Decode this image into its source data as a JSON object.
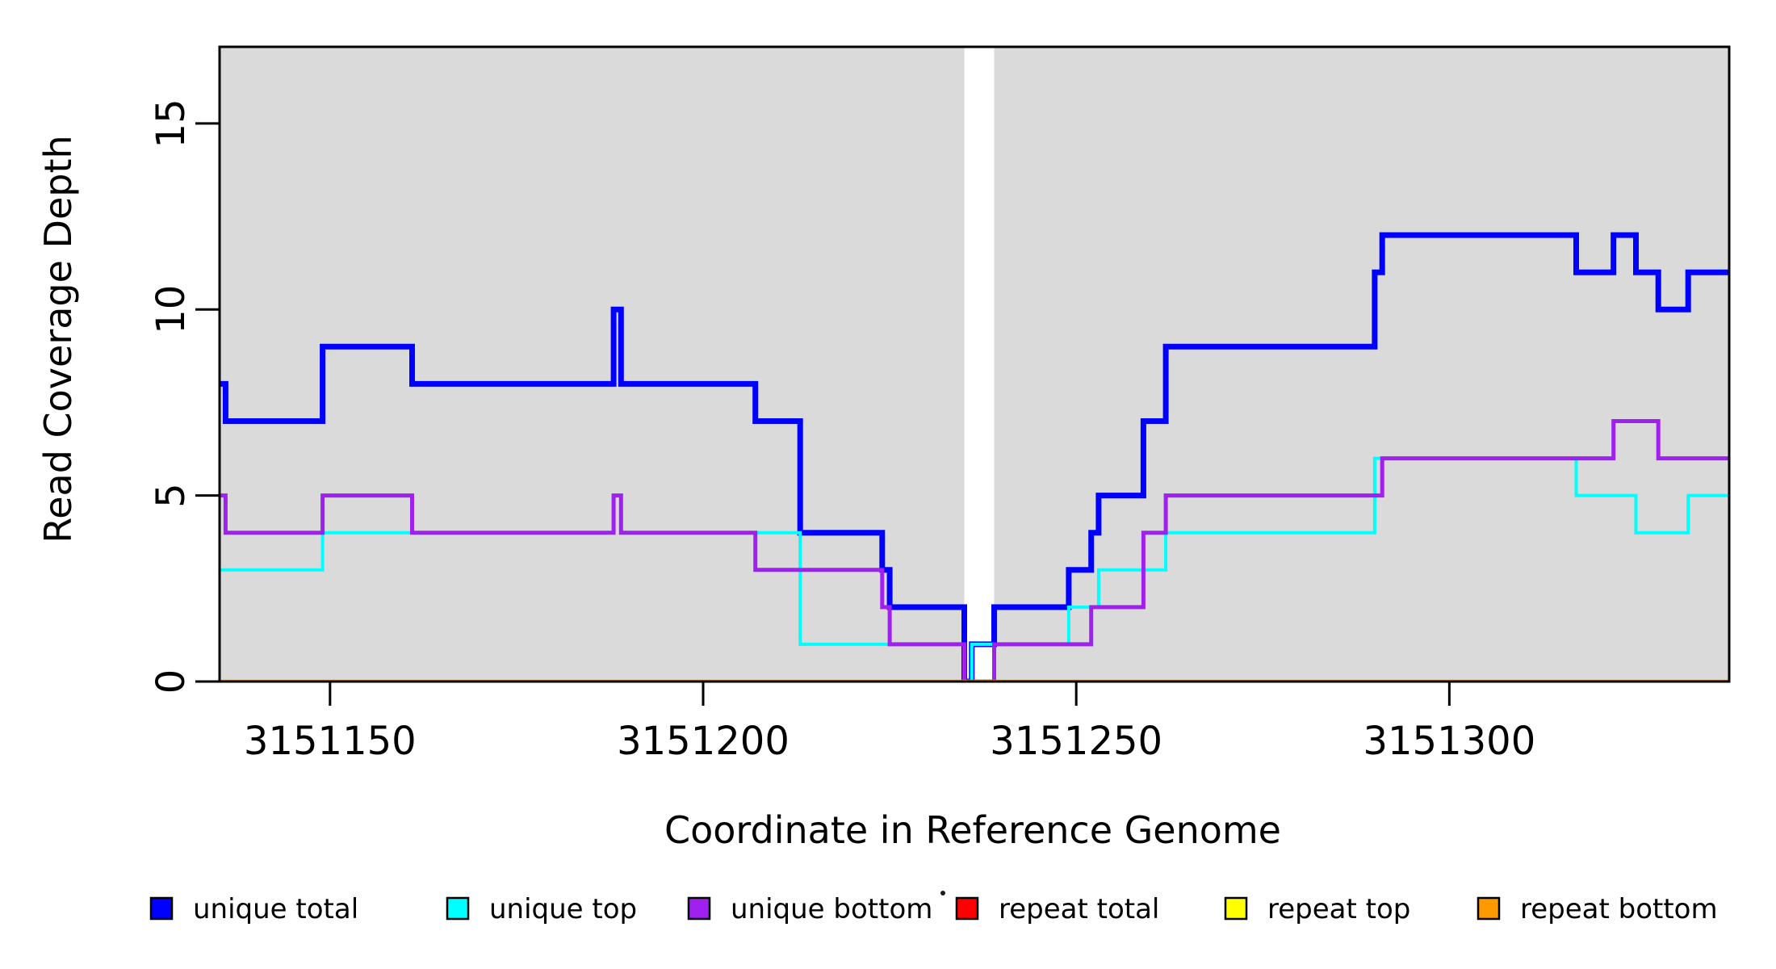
{
  "chart_data": {
    "type": "line",
    "subtype": "step",
    "title": "",
    "xlabel": "Coordinate in Reference Genome",
    "ylabel": "Read Coverage Depth",
    "xlim": [
      3151135.2,
      3151337.5
    ],
    "ylim": [
      0,
      17.06
    ],
    "x_ticks": [
      3151150,
      3151200,
      3151250,
      3151300
    ],
    "x_tick_labels": [
      "3151150",
      "3151200",
      "3151250",
      "3151300"
    ],
    "y_ticks": [
      0,
      5,
      10,
      15
    ],
    "y_tick_labels": [
      "0",
      "5",
      "10",
      "15"
    ],
    "grid": false,
    "plot_bg_color": "#DADADA",
    "axis_color": "#000000",
    "legend_position": "bottom",
    "masked_region": {
      "start": 3151235,
      "end": 3151239,
      "color": "#FFFFFF"
    },
    "series": [
      {
        "name": "unique total",
        "color": "#0000FF",
        "lwd": 7,
        "end": 3151337.5,
        "step_points": [
          [
            3151135.2,
            8
          ],
          [
            3151136,
            7
          ],
          [
            3151149,
            9
          ],
          [
            3151161,
            8
          ],
          [
            3151188,
            10
          ],
          [
            3151189,
            8
          ],
          [
            3151207,
            7
          ],
          [
            3151213,
            4
          ],
          [
            3151224,
            3
          ],
          [
            3151225,
            2
          ],
          [
            3151235,
            0
          ],
          [
            3151236,
            1
          ],
          [
            3151239,
            2
          ],
          [
            3151249,
            3
          ],
          [
            3151252,
            4
          ],
          [
            3151253,
            5
          ],
          [
            3151259,
            7
          ],
          [
            3151262,
            9
          ],
          [
            3151290,
            11
          ],
          [
            3151291,
            12
          ],
          [
            3151317,
            11
          ],
          [
            3151322,
            12
          ],
          [
            3151325,
            11
          ],
          [
            3151328,
            10
          ],
          [
            3151332,
            11
          ]
        ]
      },
      {
        "name": "unique top",
        "color": "#00FFFF",
        "lwd": 4,
        "end": 3151337.5,
        "step_points": [
          [
            3151135.2,
            3
          ],
          [
            3151149,
            4
          ],
          [
            3151188,
            5
          ],
          [
            3151189,
            4
          ],
          [
            3151213,
            1
          ],
          [
            3151235,
            0
          ],
          [
            3151236,
            1
          ],
          [
            3151249,
            2
          ],
          [
            3151253,
            3
          ],
          [
            3151262,
            4
          ],
          [
            3151290,
            6
          ],
          [
            3151317,
            5
          ],
          [
            3151325,
            4
          ],
          [
            3151332,
            5
          ]
        ]
      },
      {
        "name": "unique bottom",
        "color": "#A020F0",
        "lwd": 5,
        "end": 3151337.5,
        "step_points": [
          [
            3151135.2,
            5
          ],
          [
            3151136,
            4
          ],
          [
            3151149,
            5
          ],
          [
            3151161,
            4
          ],
          [
            3151188,
            5
          ],
          [
            3151189,
            4
          ],
          [
            3151207,
            3
          ],
          [
            3151224,
            2
          ],
          [
            3151225,
            1
          ],
          [
            3151235,
            0
          ],
          [
            3151239,
            1
          ],
          [
            3151252,
            2
          ],
          [
            3151259,
            4
          ],
          [
            3151262,
            5
          ],
          [
            3151291,
            6
          ],
          [
            3151322,
            7
          ],
          [
            3151328,
            6
          ]
        ]
      },
      {
        "name": "repeat total",
        "color": "#FF0000",
        "lwd": 4,
        "end": 3151337.5,
        "step_points": [
          [
            3151135.2,
            0
          ]
        ]
      },
      {
        "name": "repeat top",
        "color": "#FFFF00",
        "lwd": 4,
        "end": 3151337.5,
        "step_points": [
          [
            3151135.2,
            0
          ]
        ]
      },
      {
        "name": "repeat bottom",
        "color": "#FF9900",
        "lwd": 4.5,
        "end": 3151337.5,
        "step_points": [
          [
            3151135.2,
            0
          ]
        ]
      }
    ]
  }
}
